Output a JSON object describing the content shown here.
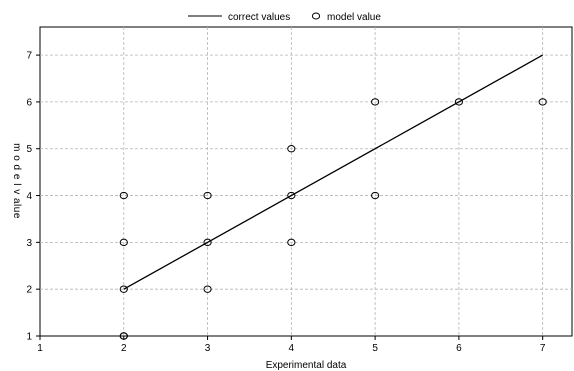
{
  "chart_data": {
    "type": "scatter",
    "title": "",
    "xlabel": "Experimental data",
    "ylabel": "m o d e l v alue",
    "xlim": [
      1,
      7.35
    ],
    "ylim": [
      1,
      7.6
    ],
    "xticks": [
      "1",
      "2",
      "3",
      "4",
      "5",
      "6",
      "7"
    ],
    "yticks": [
      "1",
      "2",
      "3",
      "4",
      "5",
      "6",
      "7"
    ],
    "grid": true,
    "legend_position": "top-center",
    "series": [
      {
        "name": "correct values",
        "type": "line",
        "color": "#000000",
        "x": [
          2,
          7
        ],
        "y": [
          2,
          7
        ]
      },
      {
        "name": "model value",
        "type": "scatter",
        "color": "#000000",
        "marker": "open-circle",
        "x": [
          2,
          2,
          2,
          2,
          2,
          3,
          3,
          3,
          4,
          4,
          4,
          5,
          5,
          6,
          7
        ],
        "y": [
          1,
          2,
          3,
          4,
          1,
          2,
          3,
          4,
          3,
          4,
          5,
          4,
          6,
          6,
          6
        ]
      }
    ]
  }
}
